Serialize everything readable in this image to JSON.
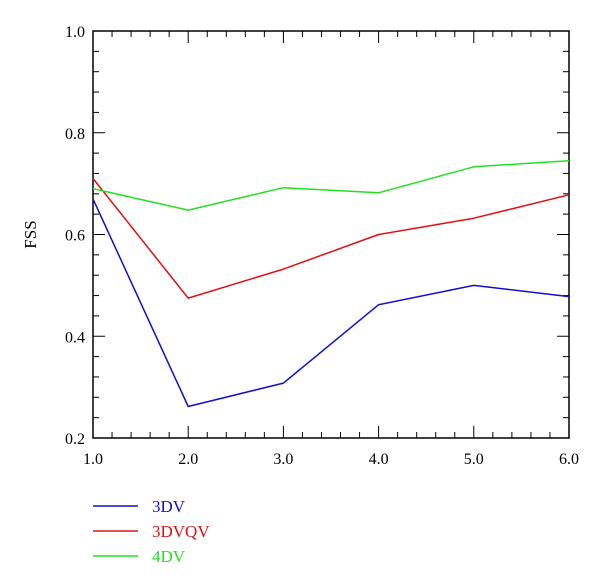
{
  "chart_data": {
    "type": "line",
    "title": "",
    "xlabel": "",
    "ylabel": "FSS",
    "xlim": [
      1.0,
      6.0
    ],
    "ylim": [
      0.2,
      1.0
    ],
    "x": [
      1.0,
      2.0,
      3.0,
      4.0,
      5.0,
      6.0
    ],
    "x_tick_labels": [
      "1.0",
      "2.0",
      "3.0",
      "4.0",
      "5.0",
      "6.0"
    ],
    "y_ticks": [
      0.2,
      0.4,
      0.6,
      0.8,
      1.0
    ],
    "y_tick_labels": [
      "0.2",
      "0.4",
      "0.6",
      "0.8",
      "1.0"
    ],
    "grid": false,
    "legend_placement": "bottom-left",
    "series": [
      {
        "name": "3DV",
        "color": "#1010cc",
        "values": [
          0.67,
          0.262,
          0.308,
          0.462,
          0.5,
          0.478
        ]
      },
      {
        "name": "3DVQV",
        "color": "#e01010",
        "values": [
          0.71,
          0.475,
          0.532,
          0.6,
          0.632,
          0.678
        ]
      },
      {
        "name": "4DV",
        "color": "#22e022",
        "values": [
          0.69,
          0.648,
          0.692,
          0.682,
          0.733,
          0.745
        ]
      }
    ]
  }
}
